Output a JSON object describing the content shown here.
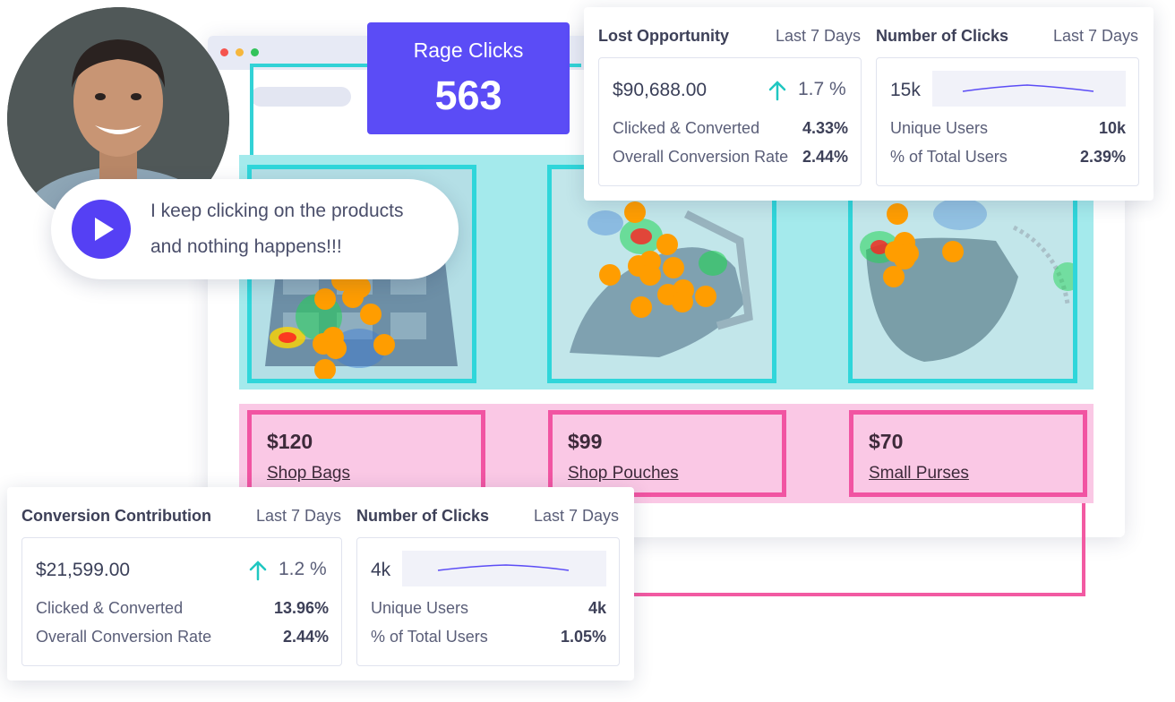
{
  "rage_clicks": {
    "label": "Rage Clicks",
    "value": "563"
  },
  "bubble": {
    "line1": "I keep clicking on the products",
    "line2": "and nothing happens!!!"
  },
  "products": [
    {
      "price": "$120",
      "link": "Shop Bags"
    },
    {
      "price": "$99",
      "link": "Shop Pouches"
    },
    {
      "price": "$70",
      "link": "Small Purses"
    }
  ],
  "top_panel": {
    "left": {
      "title": "Lost Opportunity",
      "period": "Last 7 Days",
      "amount": "$90,688.00",
      "trend": "1.7 %",
      "rows": [
        {
          "label": "Clicked & Converted",
          "value": "4.33%"
        },
        {
          "label": "Overall Conversion Rate",
          "value": "2.44%"
        }
      ]
    },
    "right": {
      "title": "Number of Clicks",
      "period": "Last 7 Days",
      "count": "15k",
      "rows": [
        {
          "label": "Unique Users",
          "value": "10k"
        },
        {
          "label": "% of Total Users",
          "value": "2.39%"
        }
      ]
    }
  },
  "bottom_panel": {
    "left": {
      "title": "Conversion Contribution",
      "period": "Last 7 Days",
      "amount": "$21,599.00",
      "trend": "1.2 %",
      "rows": [
        {
          "label": "Clicked & Converted",
          "value": "13.96%"
        },
        {
          "label": "Overall Conversion Rate",
          "value": "2.44%"
        }
      ]
    },
    "right": {
      "title": "Number of Clicks",
      "period": "Last 7 Days",
      "count": "4k",
      "rows": [
        {
          "label": "Unique Users",
          "value": "4k"
        },
        {
          "label": "% of Total Users",
          "value": "1.05%"
        }
      ]
    }
  },
  "colors": {
    "accent": "#5b4cf6",
    "cyan": "#32d2d6",
    "pink": "#f154a2",
    "trend_up": "#1fc7c1",
    "click_dot": "#ff9d00"
  },
  "icons": [
    "play-icon",
    "trend-up-icon",
    "sparkline"
  ]
}
